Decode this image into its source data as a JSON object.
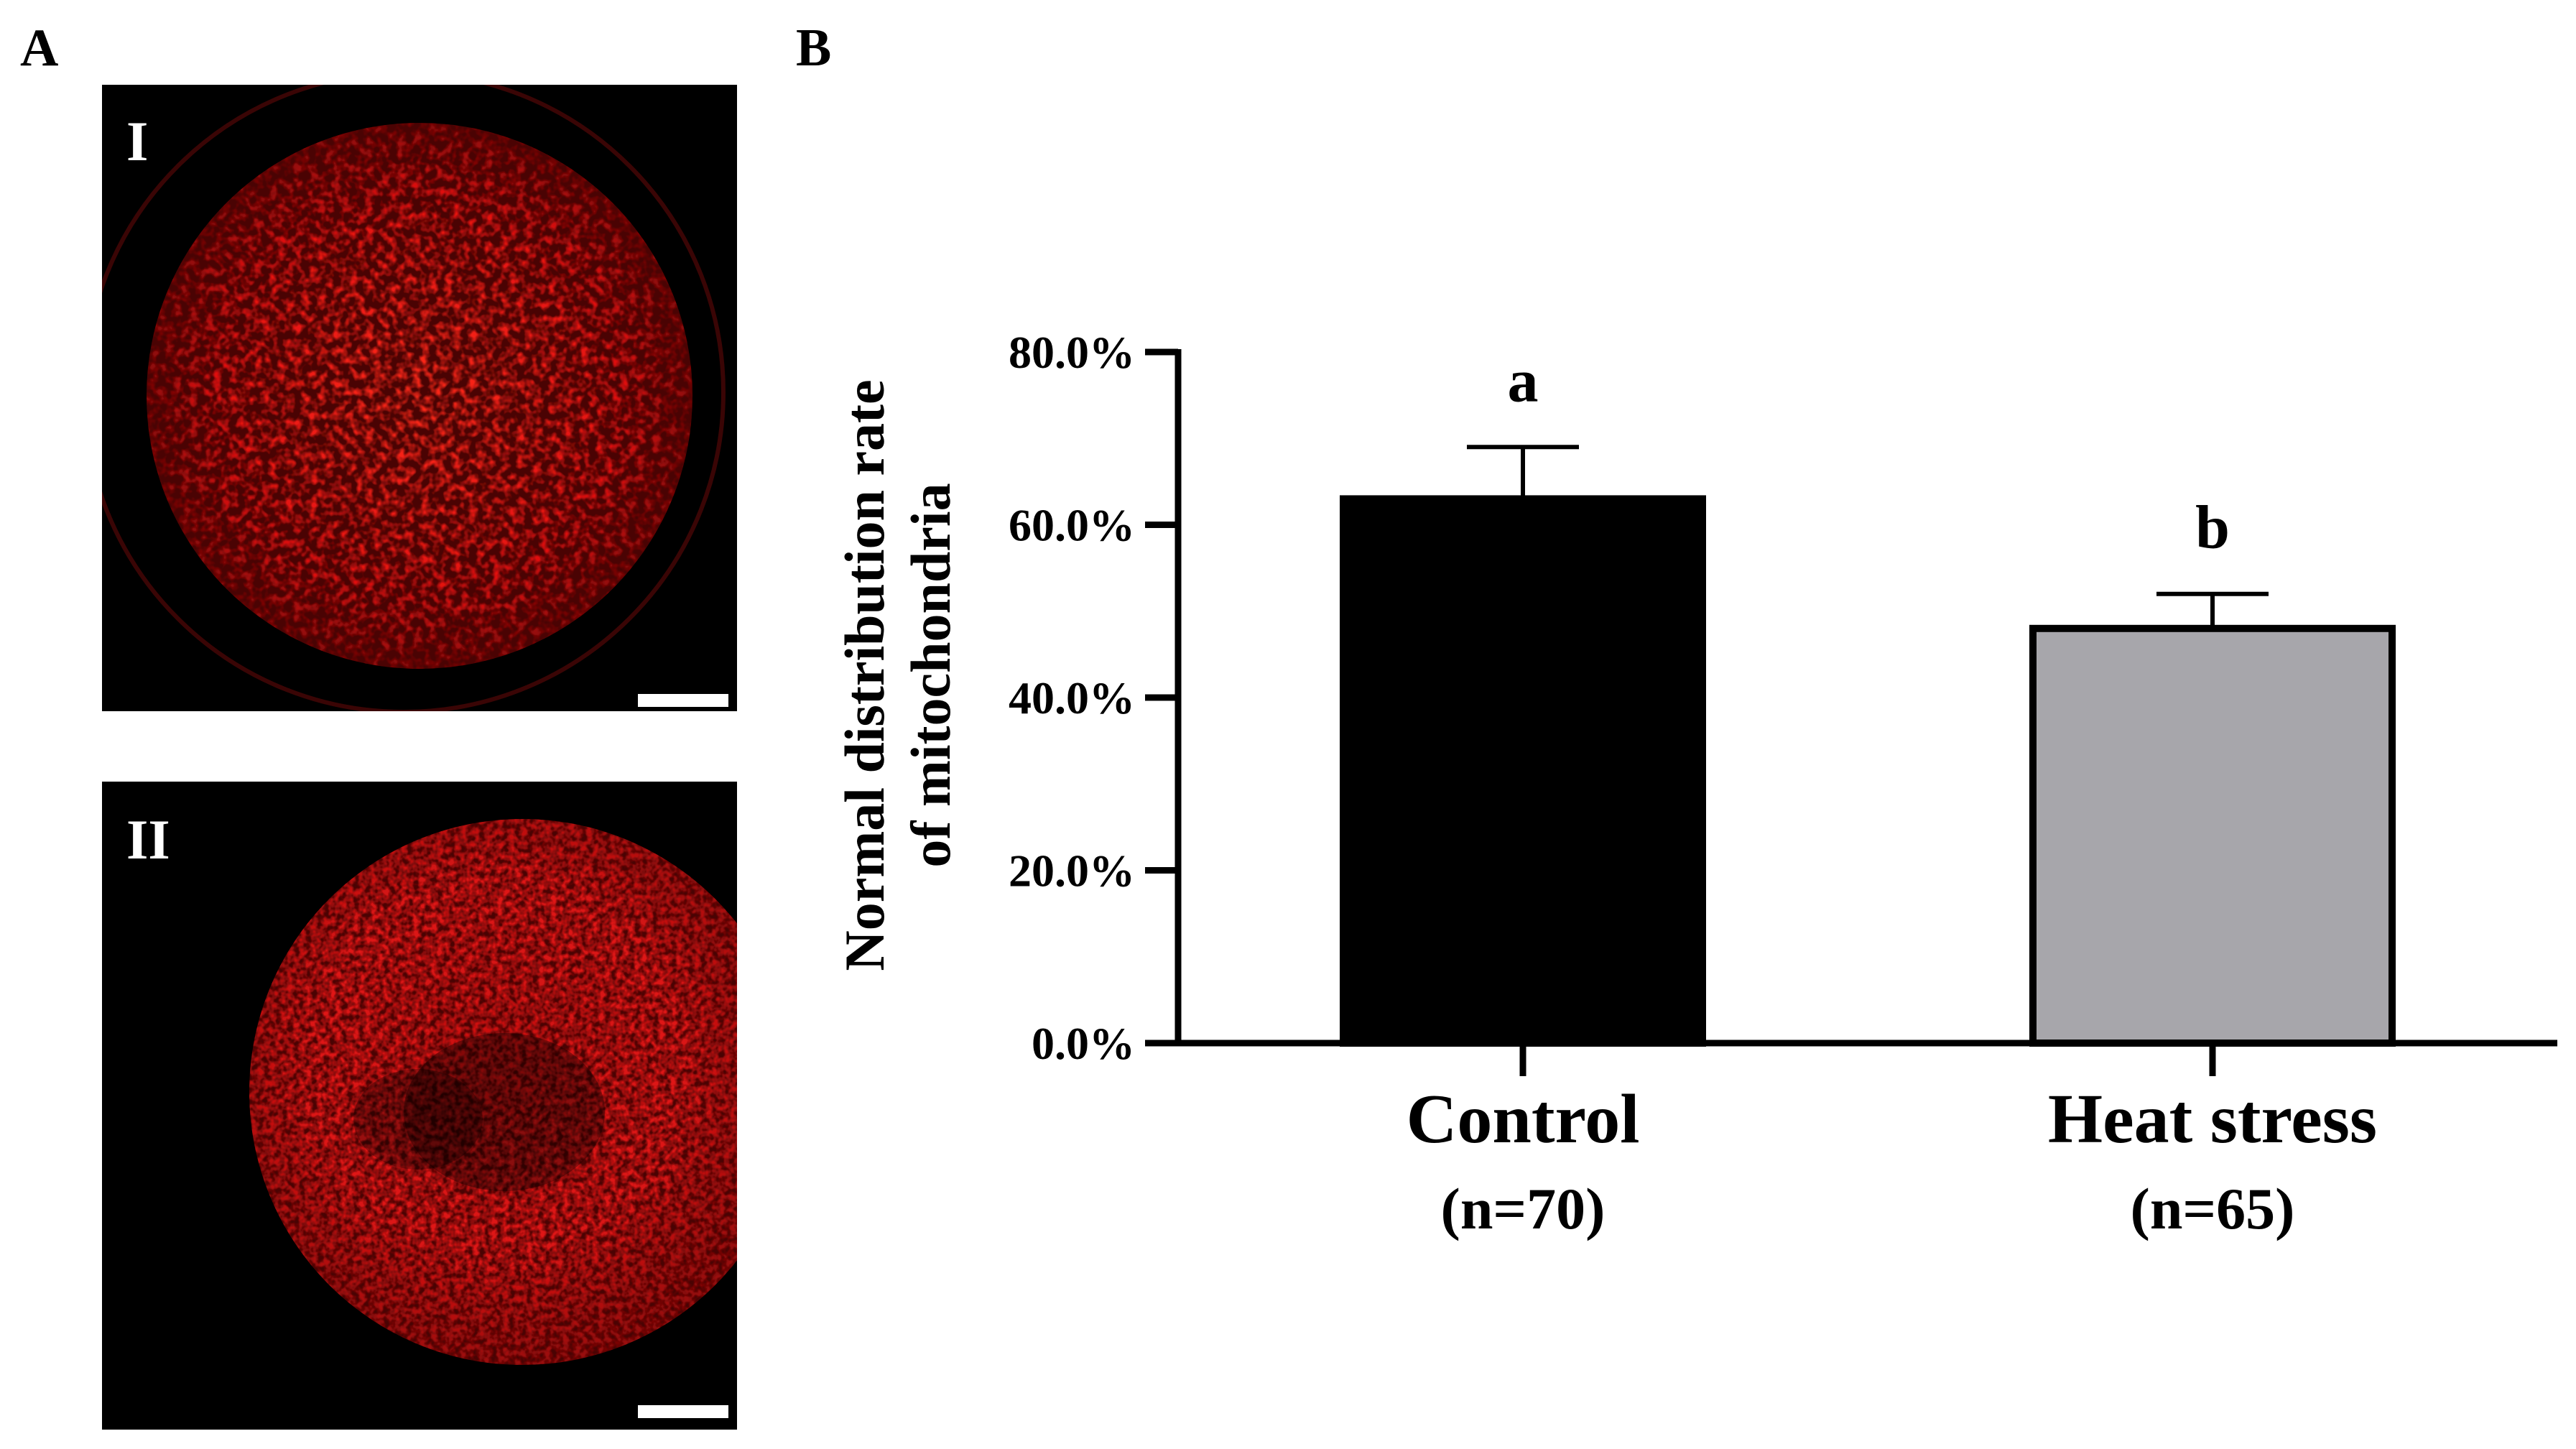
{
  "figure": {
    "panel_a_label": "A",
    "panel_b_label": "B",
    "panel_a": {
      "images": [
        {
          "label": "I",
          "description_icon": "micrograph-normal-icon"
        },
        {
          "label": "II",
          "description_icon": "micrograph-heat-stress-icon"
        }
      ],
      "fluorescence_color": "#e01010"
    }
  },
  "chart_data": {
    "type": "bar",
    "categories": [
      "Control",
      "Heat stress"
    ],
    "category_counts": [
      "(n=70)",
      "(n=65)"
    ],
    "values": [
      0.63,
      0.48
    ],
    "errors": [
      0.06,
      0.04
    ],
    "significance_letters": [
      "a",
      "b"
    ],
    "bar_colors": [
      "#000000",
      "#a7a6ab"
    ],
    "ylabel_line1": "Normal distribution rate",
    "ylabel_line2": "of mitochondria",
    "xlabel": "",
    "ylim": [
      0,
      0.8
    ],
    "yticks": [
      0,
      0.2,
      0.4,
      0.6,
      0.8
    ],
    "ytick_labels": [
      "0.0%",
      "20.0%",
      "40.0%",
      "60.0%",
      "80.0%"
    ],
    "grid": false
  }
}
